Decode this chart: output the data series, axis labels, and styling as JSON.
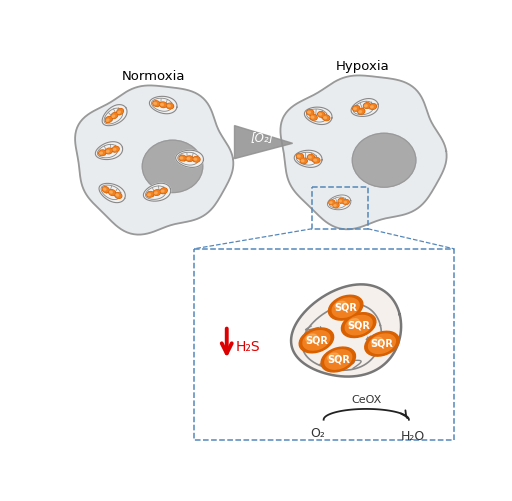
{
  "bg_color": "#ffffff",
  "cell_fill": "#e8ecee",
  "cell_outline": "#999999",
  "nucleus_fill": "#aaaaaa",
  "mito_fill": "#e8ecee",
  "mito_outline": "#888888",
  "mito_inner_fill": "#f0f0f0",
  "sqr_dark": "#d96000",
  "sqr_mid": "#f08020",
  "sqr_light": "#f8b060",
  "normoxia_label": "Normoxia",
  "hypoxia_label": "Hypoxia",
  "o2_arrow_label": "[O₂]",
  "h2s_label": "H₂S",
  "sqr_label": "SQR",
  "o2_label": "O₂",
  "h2o_label": "H₂O",
  "ceox_label": "CeOX",
  "red": "#dd0000",
  "blue_dash": "#5588bb",
  "gray_tri": "#909090",
  "dark_text": "#333333",
  "arrow_dark": "#222222"
}
